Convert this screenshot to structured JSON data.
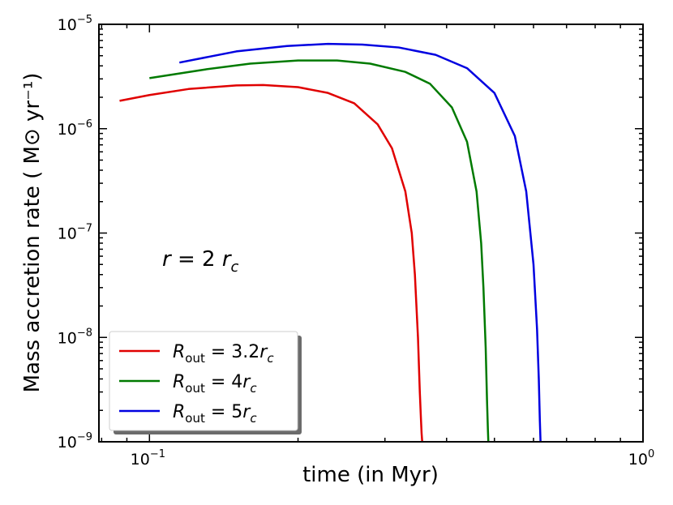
{
  "chart_data": {
    "type": "line",
    "xlabel": "time (in Myr)",
    "ylabel": "Mass accretion rate ( M⊙ yr⁻¹)",
    "xscale": "log",
    "yscale": "log",
    "xlim": [
      0.079,
      1.0
    ],
    "ylim": [
      1e-09,
      1e-05
    ],
    "grid": false,
    "legend_position": "lower-left",
    "x_tick_labels": [
      {
        "value": 0.1,
        "base": "10",
        "exp": "−1"
      },
      {
        "value": 1.0,
        "base": "10",
        "exp": "0"
      }
    ],
    "y_tick_labels": [
      {
        "value": 1e-09,
        "base": "10",
        "exp": "−9"
      },
      {
        "value": 1e-08,
        "base": "10",
        "exp": "−8"
      },
      {
        "value": 1e-07,
        "base": "10",
        "exp": "−7"
      },
      {
        "value": 1e-06,
        "base": "10",
        "exp": "−6"
      },
      {
        "value": 1e-05,
        "base": "10",
        "exp": "−5"
      }
    ],
    "annotation": {
      "r": "r",
      "eq": " = 2 ",
      "rc": "r",
      "sub": "c",
      "x": 0.085,
      "y": 6e-08
    },
    "series": [
      {
        "name": "R_out = 3.2r_c",
        "label_sub": "out",
        "label_rest": " = 3.2",
        "color": "#e00000",
        "x": [
          0.087,
          0.1,
          0.12,
          0.15,
          0.17,
          0.2,
          0.23,
          0.26,
          0.29,
          0.31,
          0.33,
          0.34,
          0.345,
          0.35,
          0.353,
          0.355,
          0.356,
          0.357
        ],
        "y": [
          1.85e-06,
          2.1e-06,
          2.4e-06,
          2.6e-06,
          2.62e-06,
          2.5e-06,
          2.2e-06,
          1.75e-06,
          1.1e-06,
          6.5e-07,
          2.5e-07,
          1e-07,
          4e-08,
          1e-08,
          3e-09,
          1.6e-09,
          1.2e-09,
          1e-09
        ]
      },
      {
        "name": "R_out = 4r_c",
        "label_sub": "out",
        "label_rest": " = 4",
        "color": "#007a00",
        "x": [
          0.1,
          0.13,
          0.16,
          0.2,
          0.24,
          0.28,
          0.33,
          0.37,
          0.41,
          0.44,
          0.46,
          0.47,
          0.475,
          0.48,
          0.483,
          0.485,
          0.486
        ],
        "y": [
          3.05e-06,
          3.7e-06,
          4.2e-06,
          4.5e-06,
          4.5e-06,
          4.2e-06,
          3.5e-06,
          2.7e-06,
          1.6e-06,
          7.5e-07,
          2.5e-07,
          8e-08,
          3e-08,
          8e-09,
          2.5e-09,
          1.3e-09,
          1e-09
        ]
      },
      {
        "name": "R_out = 5r_c",
        "label_sub": "out",
        "label_rest": " = 5",
        "color": "#0000e0",
        "x": [
          0.115,
          0.15,
          0.19,
          0.23,
          0.27,
          0.32,
          0.38,
          0.44,
          0.5,
          0.55,
          0.58,
          0.6,
          0.61,
          0.615,
          0.618,
          0.62
        ],
        "y": [
          4.3e-06,
          5.5e-06,
          6.2e-06,
          6.5e-06,
          6.4e-06,
          6e-06,
          5.1e-06,
          3.8e-06,
          2.2e-06,
          8.5e-07,
          2.5e-07,
          5e-08,
          1.2e-08,
          4e-09,
          1.6e-09,
          1e-09
        ]
      }
    ]
  }
}
